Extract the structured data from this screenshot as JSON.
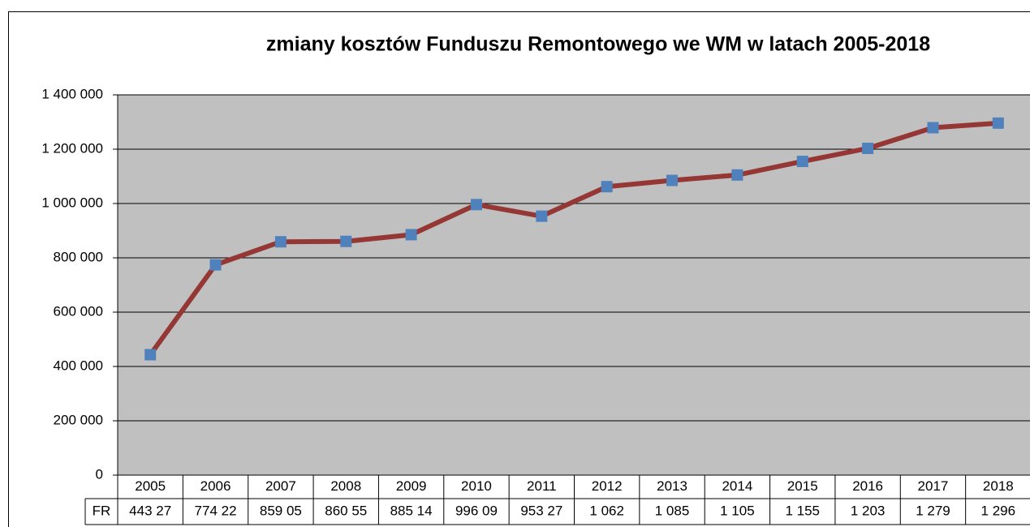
{
  "chart_data": {
    "type": "line",
    "title": "zmiany kosztów Funduszu Remontowego we WM w latach 2005-2018",
    "categories": [
      "2005",
      "2006",
      "2007",
      "2008",
      "2009",
      "2010",
      "2011",
      "2012",
      "2013",
      "2014",
      "2015",
      "2016",
      "2017",
      "2018"
    ],
    "series": [
      {
        "name": "FR",
        "color": "#953735",
        "marker_color": "#4f81bd",
        "values": [
          443270,
          774220,
          859050,
          860550,
          885140,
          996090,
          953270,
          1062000,
          1085000,
          1105000,
          1155000,
          1203000,
          1279000,
          1296000
        ],
        "value_labels": [
          "443 27",
          "774 22",
          "859 05",
          "860 55",
          "885 14",
          "996 09",
          "953 27",
          "1 062",
          "1 085",
          "1 105",
          "1 155",
          "1 203",
          "1 279",
          "1 296"
        ]
      }
    ],
    "ylim": [
      0,
      1400000
    ],
    "yticks": [
      0,
      {
        "value": 200000,
        "label": "200 000"
      },
      {
        "value": 400000,
        "label": "400 000"
      },
      {
        "value": 600000,
        "label": "600 000"
      },
      {
        "value": 800000,
        "label": "800 000"
      },
      {
        "value": 1000000,
        "label": "1 000 000"
      },
      {
        "value": 1200000,
        "label": "1 200 000"
      },
      {
        "value": 1400000,
        "label": "1 400 000"
      }
    ],
    "grid": true,
    "plot_background": "#c0c0c0"
  }
}
